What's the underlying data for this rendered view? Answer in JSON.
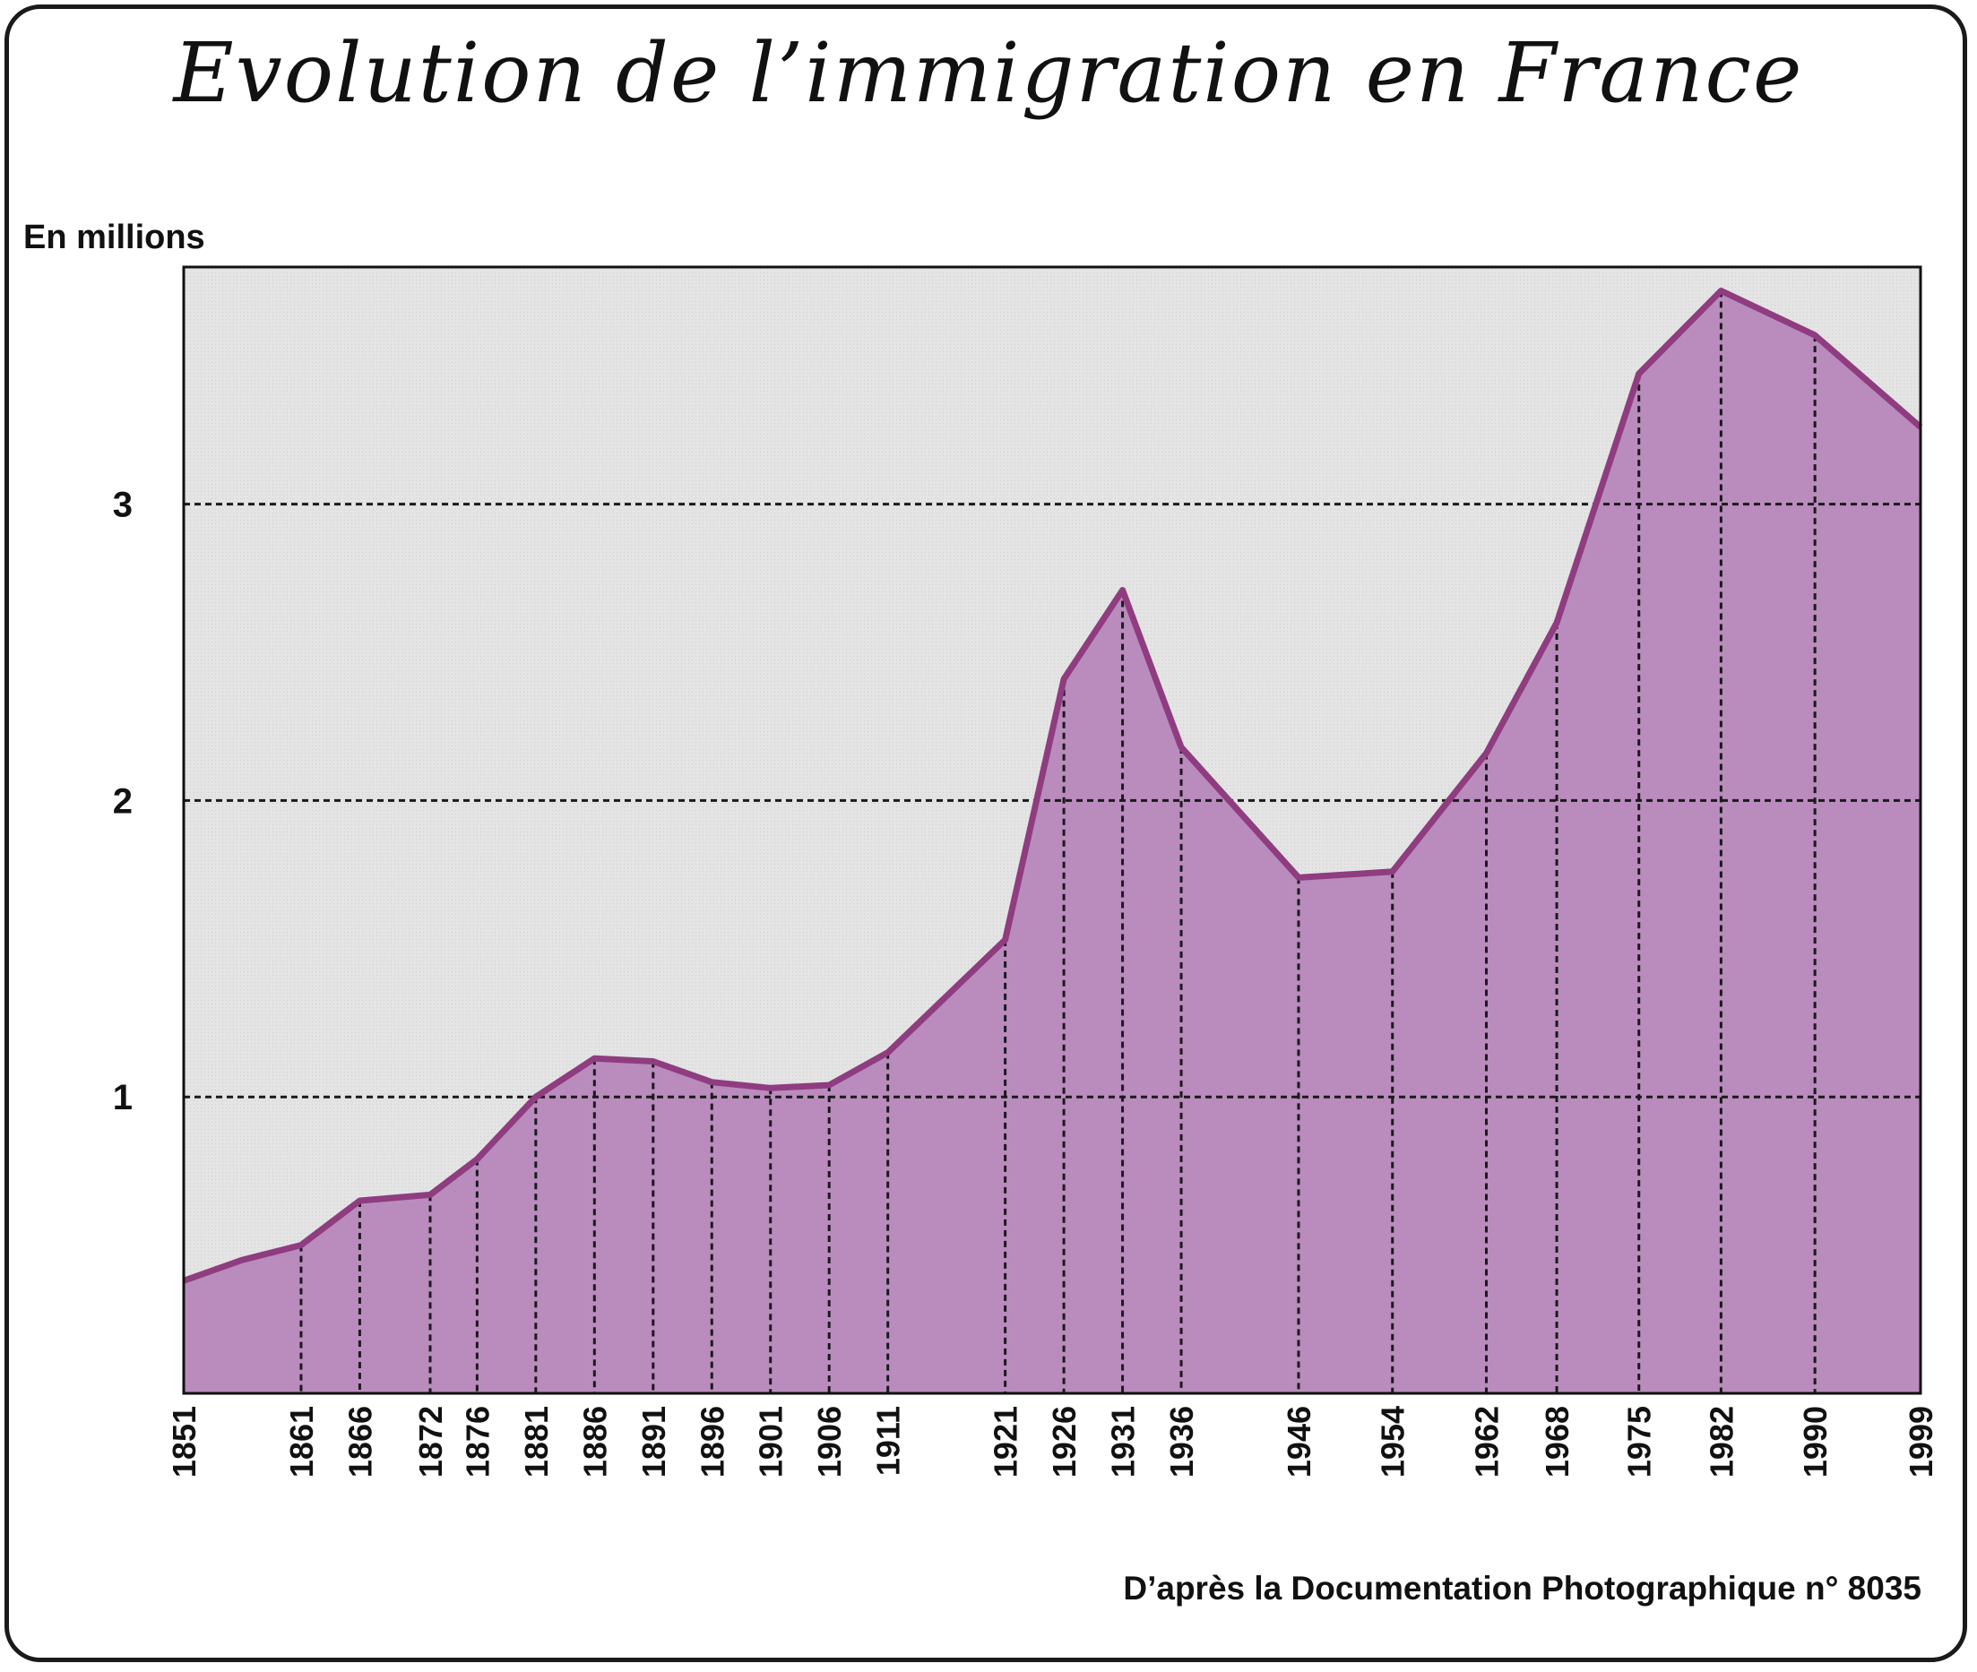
{
  "chart_data": {
    "type": "area",
    "title": "Evolution de l’immigration en France",
    "ylabel": "En millions",
    "source": "D’après la Documentation Photographique n° 8035",
    "ylim": [
      0,
      3.8
    ],
    "xlim": [
      1851,
      1999
    ],
    "yticks": [
      1,
      2,
      3
    ],
    "grid": "horizontal dashed at y ticks; vertical dashed at each data year",
    "colors": {
      "fill": "#b98cbd",
      "line": "#8f3c80",
      "plot_background": "#e3e3e3",
      "grid": "#1a1a1a"
    },
    "series": [
      {
        "x": [
          1851,
          1856,
          1861,
          1866,
          1872,
          1876,
          1881,
          1886,
          1891,
          1896,
          1901,
          1906,
          1911,
          1921,
          1926,
          1931,
          1936,
          1946,
          1954,
          1962,
          1968,
          1975,
          1982,
          1990,
          1999
        ],
        "y": [
          0.38,
          0.45,
          0.5,
          0.65,
          0.67,
          0.79,
          1.0,
          1.13,
          1.12,
          1.05,
          1.03,
          1.04,
          1.15,
          1.53,
          2.41,
          2.71,
          2.18,
          1.74,
          1.76,
          2.16,
          2.6,
          3.44,
          3.72,
          3.57,
          3.26
        ]
      }
    ],
    "x_tick_labels": [
      "1851",
      "1861",
      "1866",
      "1872",
      "1876",
      "1881",
      "1886",
      "1891",
      "1896",
      "1901",
      "1906",
      "1911",
      "1921",
      "1926",
      "1931",
      "1936",
      "1946",
      "1954",
      "1962",
      "1968",
      "1975",
      "1982",
      "1990",
      "1999"
    ]
  }
}
